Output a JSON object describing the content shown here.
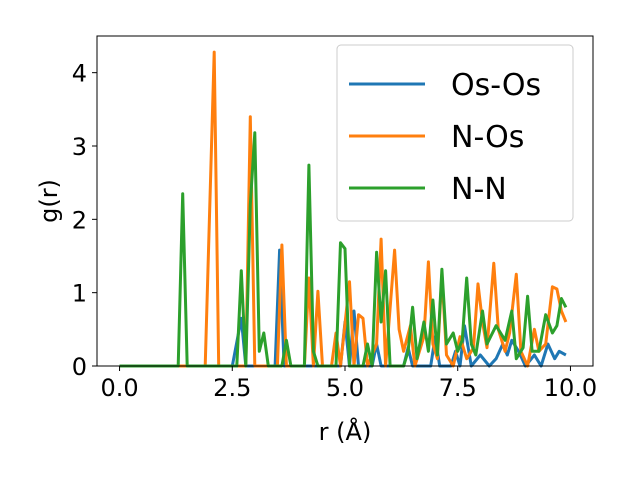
{
  "chart_data": {
    "type": "line",
    "title": "",
    "xlabel": "r (Å)",
    "ylabel": "g(r)",
    "xlim": [
      -0.5,
      10.5
    ],
    "ylim": [
      0,
      4.5
    ],
    "xticks": [
      0.0,
      2.5,
      5.0,
      7.5,
      10.0
    ],
    "xtick_labels": [
      "0.0",
      "2.5",
      "5.0",
      "7.5",
      "10.0"
    ],
    "yticks": [
      0,
      1,
      2,
      3,
      4
    ],
    "ytick_labels": [
      "0",
      "1",
      "2",
      "3",
      "4"
    ],
    "grid": false,
    "legend_position": "top-right",
    "series": [
      {
        "name": "Os-Os",
        "color": "#1f77b4",
        "points": [
          [
            0.0,
            0
          ],
          [
            2.5,
            0
          ],
          [
            2.7,
            0.65
          ],
          [
            2.8,
            0
          ],
          [
            3.45,
            0
          ],
          [
            3.55,
            1.58
          ],
          [
            3.65,
            0
          ],
          [
            4.9,
            0
          ],
          [
            5.0,
            0.6
          ],
          [
            5.1,
            0
          ],
          [
            5.2,
            0.75
          ],
          [
            5.3,
            0
          ],
          [
            5.6,
            0
          ],
          [
            5.7,
            0.3
          ],
          [
            5.8,
            0
          ],
          [
            6.3,
            0
          ],
          [
            6.4,
            0.25
          ],
          [
            6.5,
            0
          ],
          [
            6.9,
            0
          ],
          [
            7.0,
            0.4
          ],
          [
            7.1,
            0
          ],
          [
            7.35,
            0
          ],
          [
            7.45,
            0.2
          ],
          [
            7.55,
            0
          ],
          [
            7.65,
            0.55
          ],
          [
            7.8,
            0
          ],
          [
            8.0,
            0.15
          ],
          [
            8.2,
            0
          ],
          [
            8.35,
            0.1
          ],
          [
            8.5,
            0.3
          ],
          [
            8.6,
            0.15
          ],
          [
            8.7,
            0.35
          ],
          [
            8.85,
            0.2
          ],
          [
            9.0,
            0
          ],
          [
            9.2,
            0.15
          ],
          [
            9.35,
            0
          ],
          [
            9.5,
            0.3
          ],
          [
            9.65,
            0.1
          ],
          [
            9.75,
            0.2
          ],
          [
            9.9,
            0.15
          ]
        ]
      },
      {
        "name": "N-Os",
        "color": "#ff7f0e",
        "points": [
          [
            0.0,
            0
          ],
          [
            1.9,
            0
          ],
          [
            2.1,
            4.28
          ],
          [
            2.2,
            0
          ],
          [
            2.8,
            0
          ],
          [
            2.9,
            3.4
          ],
          [
            3.0,
            0
          ],
          [
            3.5,
            0
          ],
          [
            3.6,
            1.65
          ],
          [
            3.7,
            0
          ],
          [
            4.1,
            0
          ],
          [
            4.2,
            1.2
          ],
          [
            4.3,
            0
          ],
          [
            4.4,
            1.02
          ],
          [
            4.5,
            0
          ],
          [
            4.7,
            0
          ],
          [
            4.8,
            0.45
          ],
          [
            4.9,
            0
          ],
          [
            5.1,
            1.15
          ],
          [
            5.2,
            0
          ],
          [
            5.3,
            0.7
          ],
          [
            5.4,
            0.65
          ],
          [
            5.5,
            0
          ],
          [
            5.7,
            0.3
          ],
          [
            5.8,
            1.73
          ],
          [
            5.9,
            0
          ],
          [
            6.1,
            1.58
          ],
          [
            6.2,
            0.5
          ],
          [
            6.3,
            0.2
          ],
          [
            6.45,
            0.55
          ],
          [
            6.55,
            0
          ],
          [
            6.75,
            0.4
          ],
          [
            6.85,
            1.42
          ],
          [
            6.95,
            0.3
          ],
          [
            7.05,
            0.1
          ],
          [
            7.15,
            1.25
          ],
          [
            7.25,
            0.15
          ],
          [
            7.4,
            0
          ],
          [
            7.55,
            0.4
          ],
          [
            7.7,
            0.1
          ],
          [
            7.85,
            0.25
          ],
          [
            7.95,
            1.12
          ],
          [
            8.05,
            0.6
          ],
          [
            8.15,
            0.25
          ],
          [
            8.3,
            1.4
          ],
          [
            8.4,
            0.5
          ],
          [
            8.55,
            0.2
          ],
          [
            8.65,
            0.45
          ],
          [
            8.8,
            1.25
          ],
          [
            8.9,
            0.2
          ],
          [
            9.05,
            0
          ],
          [
            9.2,
            0.5
          ],
          [
            9.3,
            0.2
          ],
          [
            9.45,
            0.3
          ],
          [
            9.6,
            1.08
          ],
          [
            9.7,
            1.05
          ],
          [
            9.8,
            0.75
          ],
          [
            9.9,
            0.6
          ]
        ]
      },
      {
        "name": "N-N",
        "color": "#2ca02c",
        "points": [
          [
            0.0,
            0
          ],
          [
            1.3,
            0
          ],
          [
            1.4,
            2.35
          ],
          [
            1.5,
            0
          ],
          [
            2.6,
            0
          ],
          [
            2.7,
            1.3
          ],
          [
            2.8,
            0
          ],
          [
            2.9,
            2.2
          ],
          [
            3.0,
            3.18
          ],
          [
            3.1,
            0.2
          ],
          [
            3.2,
            0.45
          ],
          [
            3.3,
            0
          ],
          [
            3.6,
            0
          ],
          [
            3.7,
            0.35
          ],
          [
            3.8,
            0
          ],
          [
            4.1,
            0
          ],
          [
            4.2,
            2.74
          ],
          [
            4.3,
            0.2
          ],
          [
            4.4,
            0
          ],
          [
            4.8,
            0
          ],
          [
            4.9,
            1.68
          ],
          [
            5.0,
            1.6
          ],
          [
            5.1,
            0
          ],
          [
            5.4,
            0
          ],
          [
            5.5,
            0.3
          ],
          [
            5.6,
            0
          ],
          [
            5.7,
            1.55
          ],
          [
            5.8,
            0.6
          ],
          [
            5.9,
            1.3
          ],
          [
            6.0,
            0
          ],
          [
            6.3,
            0
          ],
          [
            6.4,
            0.2
          ],
          [
            6.5,
            0.8
          ],
          [
            6.6,
            0.1
          ],
          [
            6.75,
            0.6
          ],
          [
            6.85,
            0.2
          ],
          [
            6.95,
            0.9
          ],
          [
            7.05,
            0.15
          ],
          [
            7.15,
            1.32
          ],
          [
            7.25,
            0.3
          ],
          [
            7.4,
            0.45
          ],
          [
            7.5,
            0.2
          ],
          [
            7.6,
            0.35
          ],
          [
            7.7,
            1.2
          ],
          [
            7.8,
            0.3
          ],
          [
            7.9,
            0.15
          ],
          [
            8.05,
            0.75
          ],
          [
            8.15,
            0.3
          ],
          [
            8.35,
            0.55
          ],
          [
            8.45,
            0.45
          ],
          [
            8.55,
            0.35
          ],
          [
            8.7,
            0.75
          ],
          [
            8.8,
            0.1
          ],
          [
            8.95,
            0.25
          ],
          [
            9.05,
            0.95
          ],
          [
            9.15,
            0.2
          ],
          [
            9.3,
            0.2
          ],
          [
            9.45,
            0.7
          ],
          [
            9.6,
            0.45
          ],
          [
            9.7,
            0.55
          ],
          [
            9.8,
            0.92
          ],
          [
            9.9,
            0.8
          ]
        ]
      }
    ]
  }
}
